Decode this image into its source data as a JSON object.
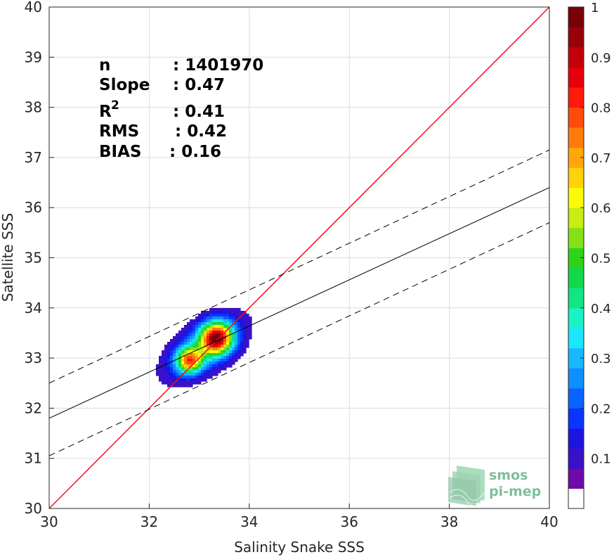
{
  "chart_data": {
    "type": "heatmap",
    "subtype": "density-contour scatter",
    "xlabel": "Salinity Snake SSS",
    "ylabel": "Satellite SSS",
    "xlim": [
      30,
      40
    ],
    "ylim": [
      30,
      40
    ],
    "xticks": [
      "30",
      "32",
      "34",
      "36",
      "38",
      "40"
    ],
    "yticks": [
      "30",
      "31",
      "32",
      "33",
      "34",
      "35",
      "36",
      "37",
      "38",
      "39",
      "40"
    ],
    "grid": true,
    "stats": [
      {
        "label": "n",
        "sep": ": ",
        "value": "1401970"
      },
      {
        "label": "Slope",
        "sep": ": ",
        "value": "0.47"
      },
      {
        "label": "R",
        "sup": "2",
        "sep": ": ",
        "value": "0.41"
      },
      {
        "label": "RMS",
        "sep": ": ",
        "value": "0.42"
      },
      {
        "label": "BIAS",
        "sep": ": ",
        "value": "0.16"
      }
    ],
    "identity_line": {
      "x": [
        30,
        40
      ],
      "y": [
        30,
        40
      ],
      "color": "#e8141c"
    },
    "regression_line": {
      "x": [
        30,
        40
      ],
      "y": [
        31.8,
        36.4
      ],
      "color": "#000000"
    },
    "envelope_lines": [
      {
        "x": [
          30,
          40
        ],
        "y": [
          32.5,
          37.15
        ],
        "style": "dashed"
      },
      {
        "x": [
          30,
          40
        ],
        "y": [
          31.05,
          35.7
        ],
        "style": "dashed"
      }
    ],
    "density_peaks": [
      {
        "x": 33.35,
        "y": 33.4,
        "value": 1.0
      },
      {
        "x": 32.8,
        "y": 32.95,
        "value": 0.75
      }
    ],
    "colorbar": {
      "min": 0,
      "max": 1,
      "ticks": [
        "0.1",
        "0.2",
        "0.3",
        "0.4",
        "0.5",
        "0.6",
        "0.7",
        "0.8",
        "0.9",
        "1"
      ],
      "colors": [
        "#ffffff",
        "#6f0aa8",
        "#3a10c9",
        "#1c14e0",
        "#0a35ff",
        "#0a62ff",
        "#0f8fff",
        "#17b8ff",
        "#1ae6ff",
        "#19f2c4",
        "#12e584",
        "#12d94a",
        "#2fd41a",
        "#86e016",
        "#c8ee12",
        "#fafa0a",
        "#ffd20a",
        "#ffa60a",
        "#ff7a0a",
        "#ff4c0a",
        "#ff1a0a",
        "#e6000a",
        "#c4000a",
        "#9a0008",
        "#780006"
      ]
    }
  },
  "logo": {
    "line1": "smos",
    "line2": "pi-mep",
    "color": "#7fbf9a"
  }
}
